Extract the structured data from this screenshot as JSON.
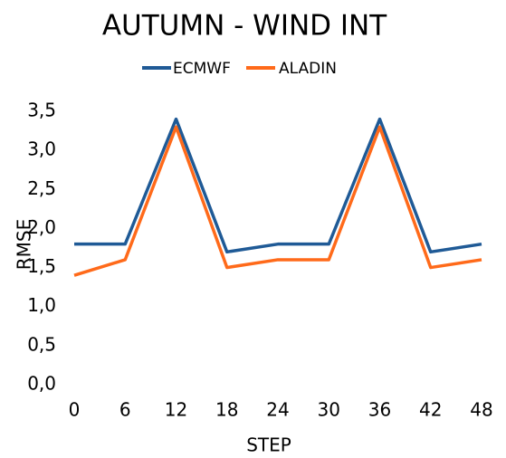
{
  "chart_data": {
    "type": "line",
    "title": "AUTUMN - WIND INT",
    "x": [
      0,
      6,
      12,
      18,
      24,
      30,
      36,
      42,
      48
    ],
    "series": [
      {
        "name": "ECMWF",
        "color": "#1f5a96",
        "values": [
          1.8,
          1.8,
          3.4,
          1.7,
          1.8,
          1.8,
          3.4,
          1.7,
          1.8
        ]
      },
      {
        "name": "ALADIN",
        "color": "#ff6a1a",
        "values": [
          1.4,
          1.6,
          3.3,
          1.5,
          1.6,
          1.6,
          3.3,
          1.5,
          1.6
        ]
      }
    ],
    "xlabel": "STEP",
    "ylabel": "RMSE",
    "xlim": [
      0,
      48
    ],
    "xticks": [
      0,
      6,
      12,
      18,
      24,
      30,
      36,
      42,
      48
    ],
    "ylim": [
      0,
      3.5
    ],
    "yticks": [
      {
        "value": 0,
        "label": "0,0"
      },
      {
        "value": 0.5,
        "label": "0,5"
      },
      {
        "value": 1,
        "label": "1,0"
      },
      {
        "value": 1.5,
        "label": "1,5"
      },
      {
        "value": 2,
        "label": "2,0"
      },
      {
        "value": 2.5,
        "label": "2,5"
      },
      {
        "value": 3,
        "label": "3,0"
      },
      {
        "value": 3.5,
        "label": "3,5"
      }
    ],
    "grid": false,
    "legend": "top"
  }
}
